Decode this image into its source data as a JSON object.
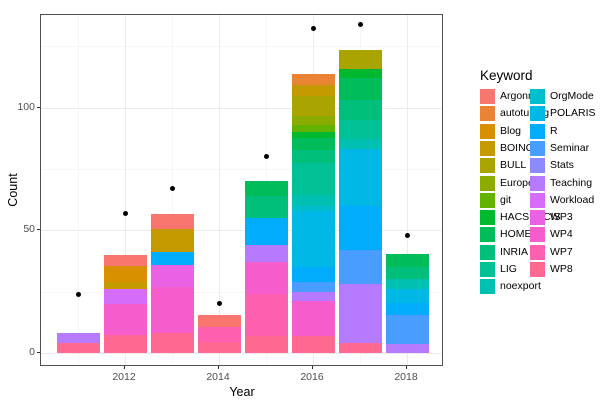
{
  "axes": {
    "x": {
      "label": "Year",
      "ticks": [
        "2012",
        "2014",
        "2016",
        "2018"
      ]
    },
    "y": {
      "label": "Count",
      "ticks": [
        "0",
        "50",
        "100"
      ]
    }
  },
  "legend": {
    "title": "Keyword",
    "items": [
      "Argonne",
      "autotuning",
      "Blog",
      "BOINC",
      "BULL",
      "Europe",
      "git",
      "HACSPECIS",
      "HOME",
      "INRIA",
      "LIG",
      "noexport",
      "OrgMode",
      "POLARIS",
      "R",
      "Seminar",
      "Stats",
      "Teaching",
      "Workload",
      "WP3",
      "WP4",
      "WP7",
      "WP8"
    ],
    "column_split": 12
  },
  "colors": {
    "Argonne": "#F8766D",
    "autotuning": "#EB8335",
    "Blog": "#D89000",
    "BOINC": "#C49A00",
    "BULL": "#A9A400",
    "Europe": "#8CAB00",
    "git": "#62B200",
    "HACSPECIS": "#00B92F",
    "HOME": "#00BC59",
    "INRIA": "#00BF7A",
    "LIG": "#00C096",
    "noexport": "#00C0B2",
    "OrgMode": "#00BECC",
    "POLARIS": "#00B8E5",
    "R": "#00ACFC",
    "Seminar": "#489DFF",
    "Stats": "#8B8BFF",
    "Teaching": "#B57AFF",
    "Workload": "#D56DF8",
    "WP3": "#E962E4",
    "WP4": "#F55CCC",
    "WP7": "#FC60AE",
    "WP8": "#FF6890"
  },
  "chart_data": {
    "type": "bar",
    "stacked": true,
    "title": "",
    "xlabel": "Year",
    "ylabel": "Count",
    "legend_title": "Keyword",
    "legend_position": "right",
    "grid": true,
    "x_major_ticks": [
      2012,
      2014,
      2016,
      2018
    ],
    "x_minor_ticks": [
      2011,
      2013,
      2015,
      2017
    ],
    "y_major_ticks": [
      0,
      50,
      100
    ],
    "y_minor_ticks": [
      25,
      75,
      125
    ],
    "ylim": [
      0,
      137
    ],
    "point_overlay": {
      "marker": "black-dot",
      "description": "total count point above each yearly bar"
    },
    "bars": [
      {
        "year": 2011,
        "total": 8,
        "point": 24,
        "segments_bottom_to_top": [
          {
            "keyword": "WP8",
            "value": 4
          },
          {
            "keyword": "Teaching",
            "value": 4
          }
        ]
      },
      {
        "year": 2012,
        "total": 40,
        "point": 57,
        "segments_bottom_to_top": [
          {
            "keyword": "WP8",
            "value": 7.5
          },
          {
            "keyword": "WP4",
            "value": 12.5
          },
          {
            "keyword": "Workload",
            "value": 6
          },
          {
            "keyword": "BOINC",
            "value": 3
          },
          {
            "keyword": "Blog",
            "value": 6.5
          },
          {
            "keyword": "Argonne",
            "value": 4.5
          }
        ]
      },
      {
        "year": 2013,
        "total": 56.5,
        "point": 67,
        "segments_bottom_to_top": [
          {
            "keyword": "WP8",
            "value": 8
          },
          {
            "keyword": "WP4",
            "value": 19
          },
          {
            "keyword": "WP3",
            "value": 9
          },
          {
            "keyword": "R",
            "value": 5
          },
          {
            "keyword": "BOINC",
            "value": 9.5
          },
          {
            "keyword": "Argonne",
            "value": 6
          }
        ]
      },
      {
        "year": 2014,
        "total": 15.5,
        "point": 20,
        "segments_bottom_to_top": [
          {
            "keyword": "WP8",
            "value": 4.5
          },
          {
            "keyword": "WP7",
            "value": 6
          },
          {
            "keyword": "Argonne",
            "value": 5
          }
        ]
      },
      {
        "year": 2015,
        "total": 70,
        "point": 80,
        "segments_bottom_to_top": [
          {
            "keyword": "WP8",
            "value": 7
          },
          {
            "keyword": "WP7",
            "value": 17
          },
          {
            "keyword": "WP4",
            "value": 13
          },
          {
            "keyword": "Teaching",
            "value": 7
          },
          {
            "keyword": "R",
            "value": 11
          },
          {
            "keyword": "INRIA",
            "value": 9
          },
          {
            "keyword": "HOME",
            "value": 6
          }
        ]
      },
      {
        "year": 2016,
        "total": 113.5,
        "point": 132,
        "segments_bottom_to_top": [
          {
            "keyword": "WP8",
            "value": 7
          },
          {
            "keyword": "WP4",
            "value": 14
          },
          {
            "keyword": "Teaching",
            "value": 4
          },
          {
            "keyword": "Seminar",
            "value": 4
          },
          {
            "keyword": "R",
            "value": 6
          },
          {
            "keyword": "POLARIS",
            "value": 23
          },
          {
            "keyword": "OrgMode",
            "value": 2
          },
          {
            "keyword": "noexport",
            "value": 4.5
          },
          {
            "keyword": "LIG",
            "value": 13
          },
          {
            "keyword": "INRIA",
            "value": 5
          },
          {
            "keyword": "HOME",
            "value": 5
          },
          {
            "keyword": "HACSPECIS",
            "value": 2.5
          },
          {
            "keyword": "git",
            "value": 3
          },
          {
            "keyword": "Europe",
            "value": 3.5
          },
          {
            "keyword": "BULL",
            "value": 8
          },
          {
            "keyword": "BOINC",
            "value": 4.5
          },
          {
            "keyword": "autotuning",
            "value": 4.5
          }
        ]
      },
      {
        "year": 2017,
        "total": 123.5,
        "point": 134,
        "segments_bottom_to_top": [
          {
            "keyword": "WP8",
            "value": 4
          },
          {
            "keyword": "Teaching",
            "value": 24
          },
          {
            "keyword": "Seminar",
            "value": 14
          },
          {
            "keyword": "R",
            "value": 18
          },
          {
            "keyword": "POLARIS",
            "value": 23
          },
          {
            "keyword": "noexport",
            "value": 4
          },
          {
            "keyword": "LIG",
            "value": 8
          },
          {
            "keyword": "INRIA",
            "value": 8
          },
          {
            "keyword": "HOME",
            "value": 9
          },
          {
            "keyword": "HACSPECIS",
            "value": 3.5
          },
          {
            "keyword": "BULL",
            "value": 8
          }
        ]
      },
      {
        "year": 2018,
        "total": 40.5,
        "point": 48,
        "segments_bottom_to_top": [
          {
            "keyword": "Teaching",
            "value": 3.5
          },
          {
            "keyword": "Seminar",
            "value": 12
          },
          {
            "keyword": "R",
            "value": 5
          },
          {
            "keyword": "POLARIS",
            "value": 5.5
          },
          {
            "keyword": "noexport",
            "value": 4
          },
          {
            "keyword": "INRIA",
            "value": 5
          },
          {
            "keyword": "HOME",
            "value": 5.5
          }
        ]
      }
    ]
  }
}
